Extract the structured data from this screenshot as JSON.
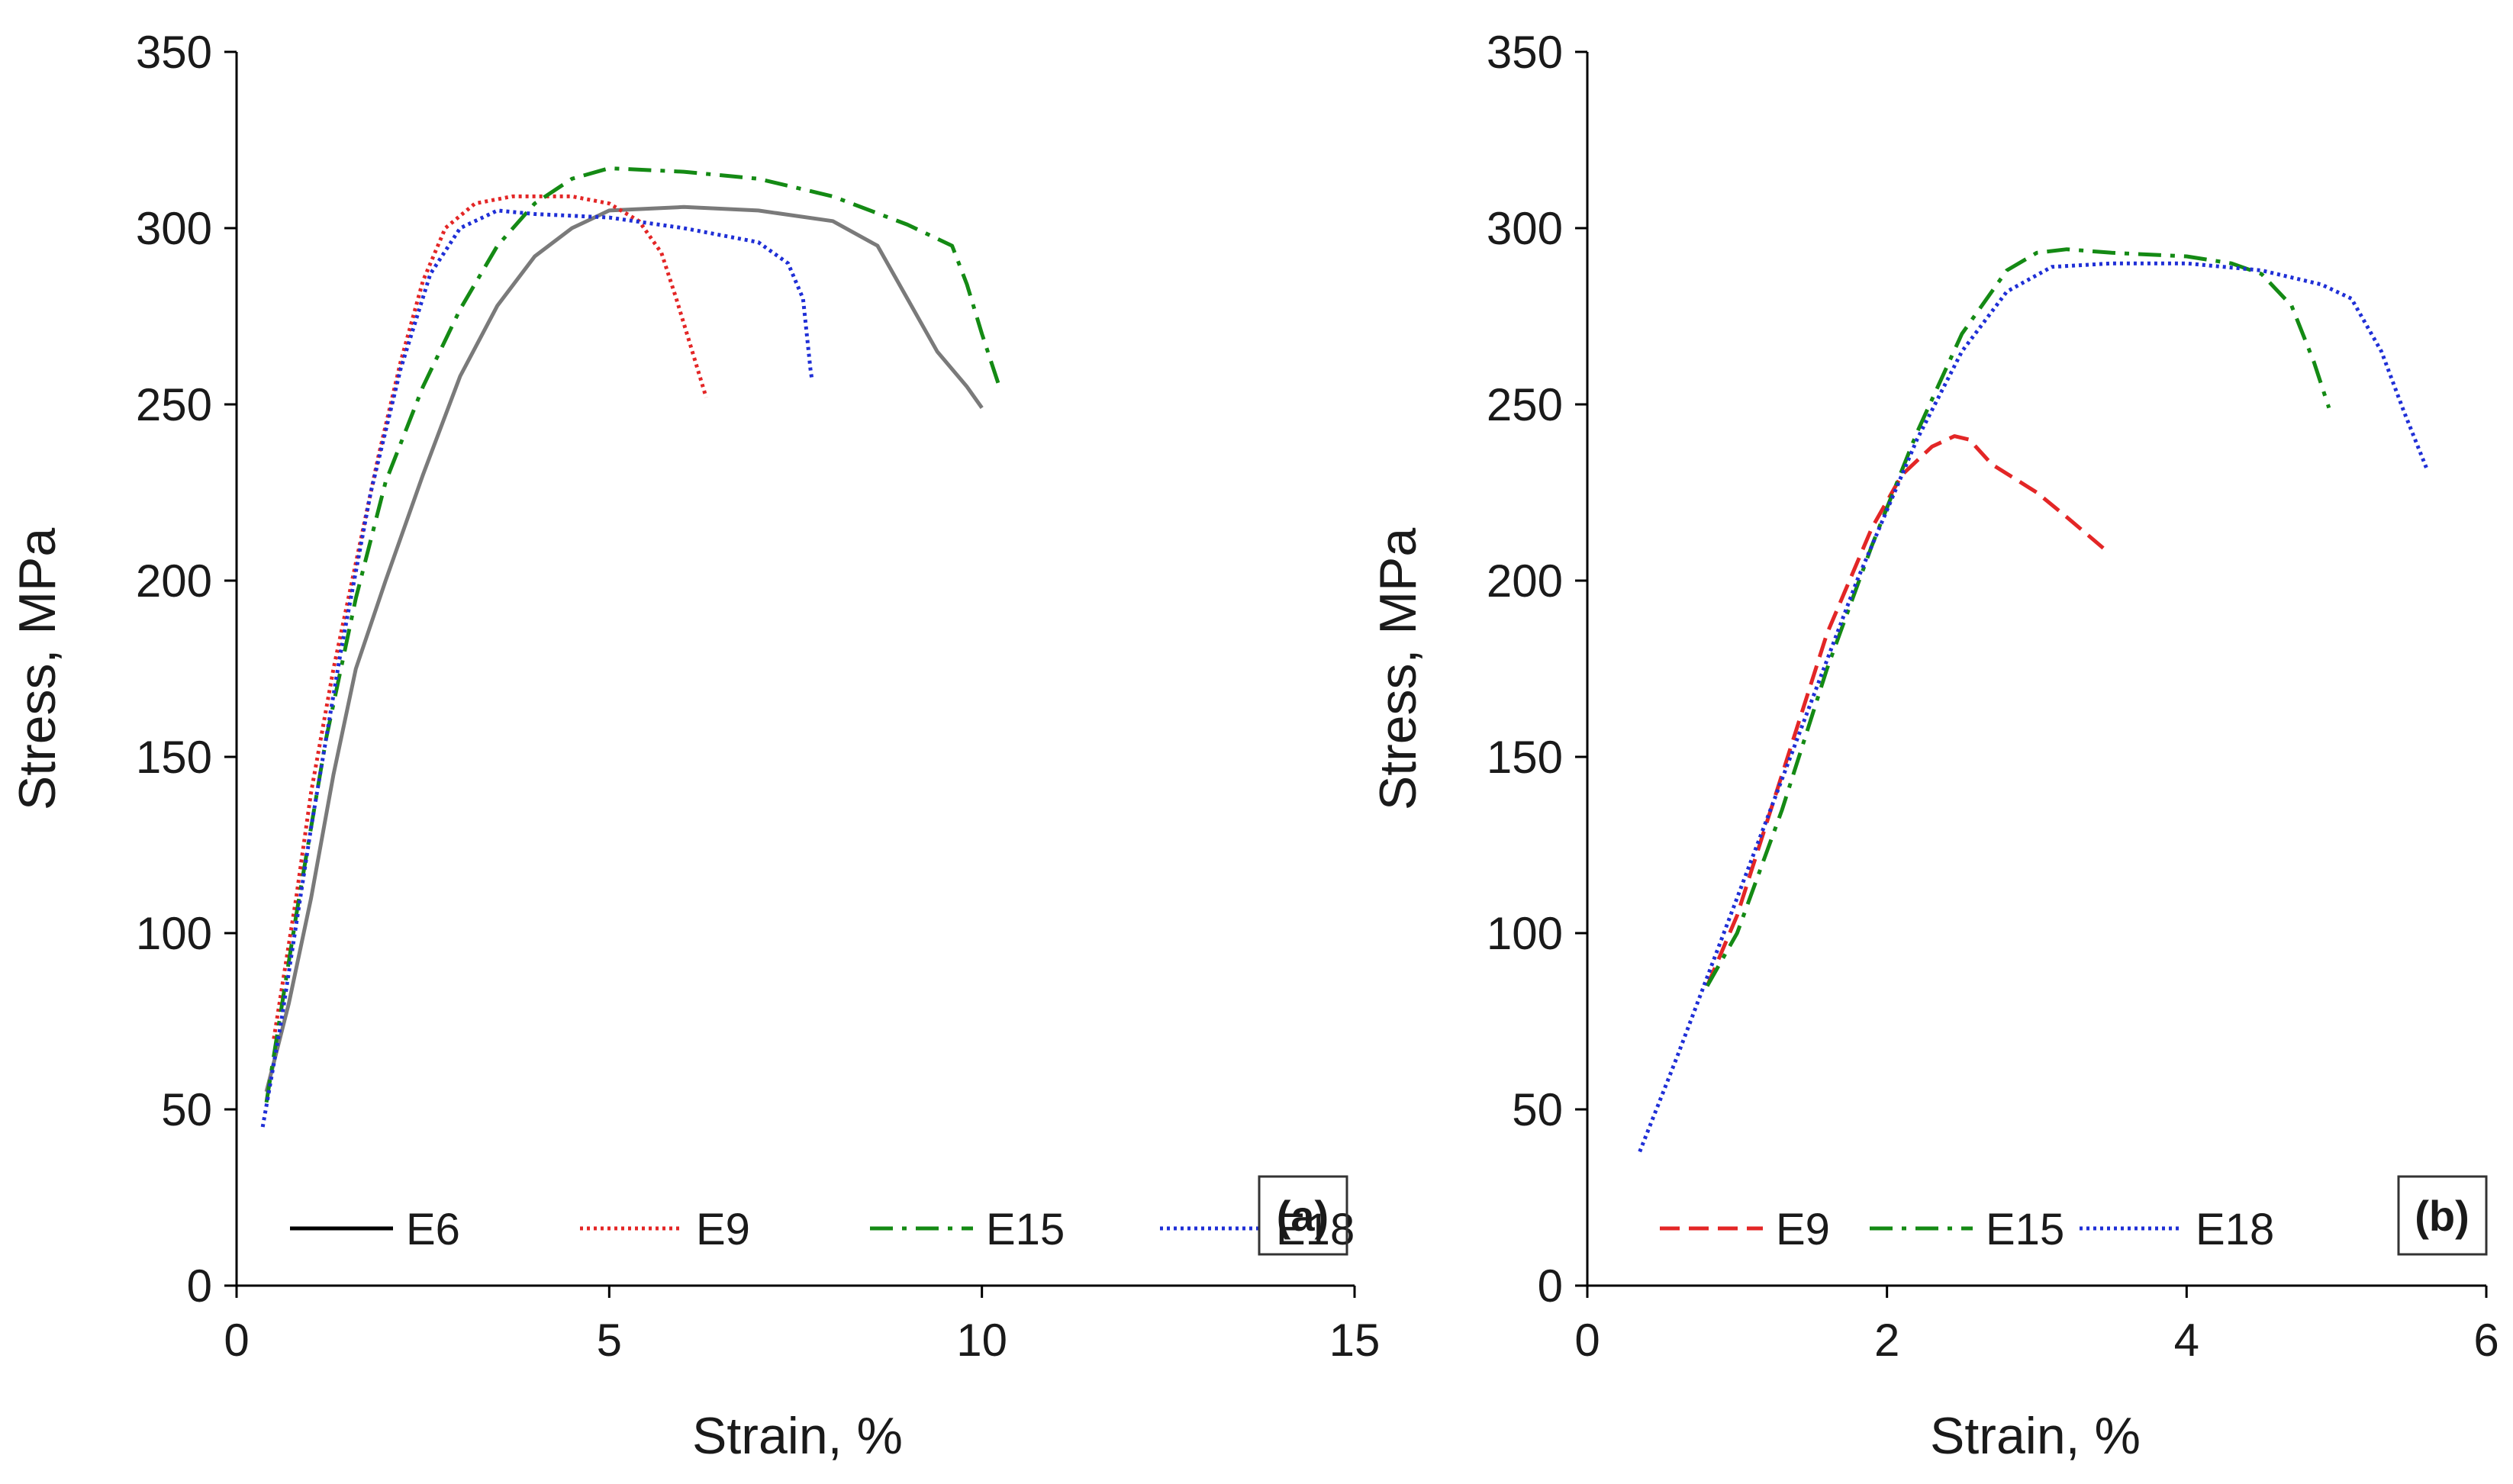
{
  "chart_data": [
    {
      "panel": "a",
      "type": "line",
      "panel_label": "(a)",
      "xlabel": "Strain, %",
      "ylabel": "Stress, MPa",
      "xlim": [
        0,
        15
      ],
      "ylim": [
        0,
        350
      ],
      "xticks": [
        0,
        5,
        10,
        15
      ],
      "yticks": [
        0,
        50,
        100,
        150,
        200,
        250,
        300,
        350
      ],
      "grid": false,
      "legend_position": "bottom-left",
      "series": [
        {
          "name": "E6",
          "color": "#7a7a7a",
          "legend_color": "#000000",
          "dash": "solid",
          "points": [
            [
              0.4,
              55
            ],
            [
              0.7,
              80
            ],
            [
              1.0,
              110
            ],
            [
              1.3,
              145
            ],
            [
              1.6,
              175
            ],
            [
              2.0,
              200
            ],
            [
              2.5,
              230
            ],
            [
              3.0,
              258
            ],
            [
              3.5,
              278
            ],
            [
              4.0,
              292
            ],
            [
              4.5,
              300
            ],
            [
              5.0,
              305
            ],
            [
              6.0,
              306
            ],
            [
              7.0,
              305
            ],
            [
              8.0,
              302
            ],
            [
              8.6,
              295
            ],
            [
              9.0,
              280
            ],
            [
              9.4,
              265
            ],
            [
              9.8,
              255
            ],
            [
              10.0,
              249
            ]
          ]
        },
        {
          "name": "E9",
          "color": "#e32626",
          "legend_color": "#e32626",
          "dash": "dotted",
          "points": [
            [
              0.5,
              70
            ],
            [
              0.8,
              110
            ],
            [
              1.0,
              140
            ],
            [
              1.3,
              175
            ],
            [
              1.6,
              205
            ],
            [
              1.9,
              235
            ],
            [
              2.2,
              262
            ],
            [
              2.5,
              285
            ],
            [
              2.8,
              300
            ],
            [
              3.2,
              307
            ],
            [
              3.7,
              309
            ],
            [
              4.5,
              309
            ],
            [
              5.0,
              307
            ],
            [
              5.4,
              302
            ],
            [
              5.7,
              293
            ],
            [
              5.9,
              280
            ],
            [
              6.1,
              266
            ],
            [
              6.3,
              252
            ]
          ]
        },
        {
          "name": "E15",
          "color": "#148a14",
          "legend_color": "#148a14",
          "dash": "dashdot",
          "points": [
            [
              0.4,
              52
            ],
            [
              0.8,
              105
            ],
            [
              1.2,
              155
            ],
            [
              1.6,
              195
            ],
            [
              2.0,
              228
            ],
            [
              2.5,
              255
            ],
            [
              3.0,
              277
            ],
            [
              3.5,
              295
            ],
            [
              4.0,
              307
            ],
            [
              4.5,
              314
            ],
            [
              5.0,
              317
            ],
            [
              6.0,
              316
            ],
            [
              7.0,
              314
            ],
            [
              8.0,
              309
            ],
            [
              9.0,
              301
            ],
            [
              9.6,
              295
            ],
            [
              9.8,
              284
            ],
            [
              10.0,
              270
            ],
            [
              10.25,
              254
            ]
          ]
        },
        {
          "name": "E18",
          "color": "#1f2fd6",
          "legend_color": "#1f2fd6",
          "dash": "dotted",
          "points": [
            [
              0.35,
              45
            ],
            [
              0.6,
              75
            ],
            [
              1.0,
              130
            ],
            [
              1.4,
              180
            ],
            [
              1.8,
              225
            ],
            [
              2.2,
              260
            ],
            [
              2.6,
              287
            ],
            [
              3.0,
              300
            ],
            [
              3.5,
              305
            ],
            [
              4.0,
              304
            ],
            [
              5.0,
              303
            ],
            [
              6.0,
              300
            ],
            [
              7.0,
              296
            ],
            [
              7.4,
              290
            ],
            [
              7.6,
              280
            ],
            [
              7.7,
              260
            ],
            [
              7.72,
              257
            ]
          ]
        }
      ]
    },
    {
      "panel": "b",
      "type": "line",
      "panel_label": "(b)",
      "xlabel": "Strain, %",
      "ylabel": "Stress, MPa",
      "xlim": [
        0,
        6
      ],
      "ylim": [
        0,
        350
      ],
      "xticks": [
        0,
        2,
        4,
        6
      ],
      "yticks": [
        0,
        50,
        100,
        150,
        200,
        250,
        300,
        350
      ],
      "grid": false,
      "legend_position": "bottom-left",
      "series": [
        {
          "name": "E9",
          "color": "#e32626",
          "legend_color": "#e32626",
          "dash": "dashed",
          "points": [
            [
              0.8,
              85
            ],
            [
              1.0,
              105
            ],
            [
              1.3,
              145
            ],
            [
              1.6,
              185
            ],
            [
              1.9,
              215
            ],
            [
              2.1,
              230
            ],
            [
              2.3,
              238
            ],
            [
              2.45,
              241
            ],
            [
              2.55,
              240
            ],
            [
              2.7,
              233
            ],
            [
              3.0,
              225
            ],
            [
              3.2,
              218
            ],
            [
              3.45,
              209
            ]
          ]
        },
        {
          "name": "E15",
          "color": "#148a14",
          "legend_color": "#148a14",
          "dash": "dashdot",
          "points": [
            [
              0.8,
              85
            ],
            [
              1.0,
              100
            ],
            [
              1.3,
              135
            ],
            [
              1.6,
              175
            ],
            [
              1.9,
              210
            ],
            [
              2.2,
              242
            ],
            [
              2.5,
              270
            ],
            [
              2.8,
              288
            ],
            [
              3.0,
              293
            ],
            [
              3.2,
              294
            ],
            [
              3.5,
              293
            ],
            [
              4.0,
              292
            ],
            [
              4.3,
              290
            ],
            [
              4.5,
              287
            ],
            [
              4.7,
              278
            ],
            [
              4.85,
              262
            ],
            [
              4.95,
              249
            ]
          ]
        },
        {
          "name": "E18",
          "color": "#1f2fd6",
          "legend_color": "#1f2fd6",
          "dash": "dotted",
          "points": [
            [
              0.35,
              38
            ],
            [
              0.6,
              65
            ],
            [
              1.0,
              110
            ],
            [
              1.4,
              155
            ],
            [
              1.8,
              200
            ],
            [
              2.2,
              240
            ],
            [
              2.5,
              265
            ],
            [
              2.8,
              282
            ],
            [
              3.1,
              289
            ],
            [
              3.5,
              290
            ],
            [
              4.0,
              290
            ],
            [
              4.5,
              288
            ],
            [
              4.9,
              284
            ],
            [
              5.1,
              280
            ],
            [
              5.3,
              265
            ],
            [
              5.45,
              248
            ],
            [
              5.6,
              232
            ]
          ]
        }
      ]
    }
  ]
}
